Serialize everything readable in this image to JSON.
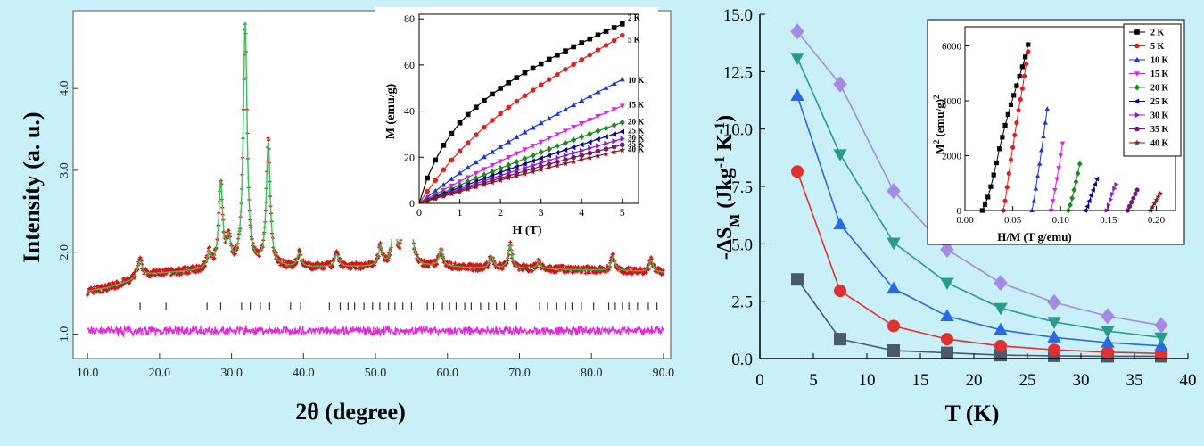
{
  "figure": {
    "background": "#c9f0f8"
  },
  "chart_data": [
    {
      "id": "xrd",
      "type": "scatter",
      "title": "",
      "xlabel": "2θ (degree)",
      "ylabel": "Intensity (a. u.)",
      "xlim": [
        8.0,
        91.0
      ],
      "ylim": [
        0.7,
        4.95
      ],
      "x_ticks": [
        "10.0",
        "20.0",
        "30.0",
        "40.0",
        "50.0",
        "60.0",
        "70.0",
        "80.0",
        "90.0"
      ],
      "y_ticks": [
        "1.0",
        "2.0",
        "3.0",
        "4.0"
      ],
      "grid": false,
      "background_profile": [
        [
          10,
          1.52
        ],
        [
          13,
          1.57
        ],
        [
          16,
          1.65
        ],
        [
          17,
          1.72
        ],
        [
          20,
          1.74
        ],
        [
          25,
          1.77
        ],
        [
          30,
          1.8
        ],
        [
          35,
          1.81
        ],
        [
          40,
          1.81
        ],
        [
          45,
          1.82
        ],
        [
          50,
          1.82
        ],
        [
          55,
          1.83
        ],
        [
          60,
          1.82
        ],
        [
          65,
          1.8
        ],
        [
          70,
          1.8
        ],
        [
          75,
          1.79
        ],
        [
          80,
          1.78
        ],
        [
          85,
          1.77
        ],
        [
          90,
          1.75
        ]
      ],
      "peaks": [
        {
          "x": 17.3,
          "y": 1.9
        },
        {
          "x": 26.9,
          "y": 1.98
        },
        {
          "x": 28.5,
          "y": 2.82
        },
        {
          "x": 29.6,
          "y": 2.1
        },
        {
          "x": 31.9,
          "y": 4.78
        },
        {
          "x": 35.1,
          "y": 3.33
        },
        {
          "x": 39.4,
          "y": 1.98
        },
        {
          "x": 44.6,
          "y": 1.97
        },
        {
          "x": 50.7,
          "y": 2.06
        },
        {
          "x": 52.6,
          "y": 2.42
        },
        {
          "x": 53.9,
          "y": 2.3
        },
        {
          "x": 54.8,
          "y": 2.68
        },
        {
          "x": 59.1,
          "y": 2.03
        },
        {
          "x": 66.1,
          "y": 1.95
        },
        {
          "x": 68.7,
          "y": 2.08
        },
        {
          "x": 72.7,
          "y": 1.88
        },
        {
          "x": 83.0,
          "y": 1.95
        },
        {
          "x": 88.3,
          "y": 1.9
        }
      ],
      "reflection_ticks_x": [
        17.3,
        20.9,
        26.6,
        28.5,
        31.4,
        32.6,
        34.0,
        35.3,
        38.2,
        39.6,
        43.6,
        45.1,
        46.2,
        47.1,
        48.4,
        49.6,
        50.6,
        51.8,
        52.7,
        53.8,
        55.0,
        57.2,
        58.1,
        59.3,
        60.3,
        61.2,
        62.4,
        63.3,
        64.6,
        65.7,
        66.8,
        67.9,
        69.6,
        72.8,
        73.9,
        75.1,
        76.4,
        77.3,
        78.6,
        80.3,
        82.4,
        83.3,
        84.3,
        85.2,
        86.4,
        87.9,
        89.1
      ],
      "reflection_ticks_y": 1.34,
      "difference_baseline": 1.04,
      "colors": {
        "observed": "#d41414",
        "calculated": "#36c25a",
        "difference": "#e02ad8",
        "ticks": "#333333"
      }
    },
    {
      "id": "mh-inset",
      "type": "line",
      "xlabel": "H (T)",
      "ylabel": "M (emu/g)",
      "xlim": [
        0,
        5.4
      ],
      "ylim": [
        0,
        82
      ],
      "x_ticks": [
        "0",
        "1",
        "2",
        "3",
        "4",
        "5"
      ],
      "y_ticks": [
        "0",
        "20",
        "40",
        "60",
        "80"
      ],
      "x": [
        0,
        0.2,
        0.4,
        0.6,
        0.8,
        1.0,
        1.2,
        1.4,
        1.6,
        1.8,
        2.0,
        2.2,
        2.4,
        2.6,
        2.8,
        3.0,
        3.2,
        3.4,
        3.6,
        3.8,
        4.0,
        4.2,
        4.4,
        4.6,
        4.8,
        5.0
      ],
      "series": [
        {
          "name": "2 K",
          "color": "#000000",
          "marker": "square",
          "values": [
            0,
            11.0,
            18.8,
            25.2,
            30.3,
            34.9,
            38.5,
            41.7,
            44.6,
            47.4,
            49.9,
            52.3,
            54.5,
            56.6,
            58.6,
            60.5,
            62.5,
            64.3,
            66.1,
            67.9,
            69.6,
            71.3,
            73.0,
            74.6,
            76.2,
            77.8
          ]
        },
        {
          "name": "5 K",
          "color": "#e02020",
          "marker": "circle",
          "values": [
            0,
            5.2,
            10.0,
            14.6,
            18.8,
            22.7,
            26.3,
            29.7,
            33.0,
            36.0,
            38.9,
            41.6,
            44.2,
            46.7,
            49.1,
            51.4,
            53.7,
            55.9,
            58.1,
            60.2,
            62.3,
            64.4,
            66.5,
            68.5,
            70.6,
            72.9
          ]
        },
        {
          "name": "10 K",
          "color": "#1a36d8",
          "marker": "triangle-up",
          "values": [
            0,
            2.7,
            5.4,
            8.0,
            10.6,
            13.1,
            15.5,
            17.8,
            20.1,
            22.3,
            24.5,
            26.6,
            28.7,
            30.8,
            32.8,
            34.8,
            36.8,
            38.8,
            40.7,
            42.6,
            44.5,
            46.4,
            48.3,
            50.1,
            51.9,
            53.7
          ]
        },
        {
          "name": "15 K",
          "color": "#e020e0",
          "marker": "triangle-down",
          "values": [
            0,
            2.0,
            3.9,
            5.8,
            7.7,
            9.5,
            11.3,
            13.1,
            14.9,
            16.6,
            18.3,
            20.0,
            21.7,
            23.4,
            25.0,
            26.7,
            28.3,
            29.9,
            31.5,
            33.1,
            34.7,
            36.2,
            37.8,
            39.3,
            40.8,
            42.3
          ]
        },
        {
          "name": "20 K",
          "color": "#1a8a1a",
          "marker": "diamond",
          "values": [
            0,
            1.6,
            3.2,
            4.8,
            6.3,
            7.9,
            9.4,
            10.9,
            12.3,
            13.8,
            15.2,
            16.6,
            18.0,
            19.4,
            20.8,
            22.2,
            23.5,
            24.9,
            26.2,
            27.5,
            28.8,
            30.1,
            31.4,
            32.6,
            33.9,
            35.1
          ]
        },
        {
          "name": "25 K",
          "color": "#00008a",
          "marker": "triangle-left",
          "values": [
            0,
            1.4,
            2.8,
            4.2,
            5.6,
            6.9,
            8.2,
            9.5,
            10.8,
            12.1,
            13.4,
            14.7,
            15.9,
            17.1,
            18.4,
            19.6,
            20.8,
            22.0,
            23.2,
            24.3,
            25.5,
            26.6,
            27.8,
            28.9,
            30.0,
            31.1
          ]
        },
        {
          "name": "30 K",
          "color": "#8a1ad8",
          "marker": "triangle-right",
          "values": [
            0,
            1.3,
            2.5,
            3.8,
            5.0,
            6.2,
            7.4,
            8.6,
            9.8,
            10.9,
            12.1,
            13.2,
            14.3,
            15.4,
            16.5,
            17.6,
            18.7,
            19.8,
            20.8,
            21.9,
            22.9,
            24.0,
            25.0,
            26.0,
            27.0,
            28.0
          ]
        },
        {
          "name": "35 K",
          "color": "#701a70",
          "marker": "circle",
          "values": [
            0,
            1.2,
            2.3,
            3.4,
            4.5,
            5.6,
            6.7,
            7.8,
            8.9,
            9.9,
            11.0,
            12.0,
            13.0,
            14.0,
            15.0,
            16.0,
            17.0,
            18.0,
            18.9,
            19.9,
            20.8,
            21.8,
            22.7,
            23.6,
            24.5,
            25.4
          ]
        },
        {
          "name": "40 K",
          "color": "#8a1a1a",
          "marker": "star",
          "values": [
            0,
            1.0,
            2.1,
            3.1,
            4.1,
            5.1,
            6.1,
            7.1,
            8.1,
            9.1,
            10.0,
            11.0,
            11.9,
            12.8,
            13.7,
            14.6,
            15.5,
            16.4,
            17.3,
            18.1,
            19.0,
            19.8,
            20.6,
            21.5,
            22.3,
            23.1
          ]
        }
      ],
      "curve_labels": [
        {
          "name": "2 K",
          "text": "2 K"
        },
        {
          "name": "5 K",
          "text": "5 K"
        },
        {
          "name": "10 K",
          "text": "10 K"
        },
        {
          "name": "15 K",
          "text": "15 K"
        },
        {
          "name": "20 K",
          "text": "20 K"
        },
        {
          "name": "25 K",
          "text": "25 K"
        },
        {
          "name": "30 K",
          "text": "30 K"
        },
        {
          "name": "35 K",
          "text": "35 K"
        },
        {
          "name": "40 K",
          "text": "40 K"
        }
      ]
    },
    {
      "id": "entropy",
      "type": "line",
      "xlabel": "T (K)",
      "ylabel": "-ΔS_M (Jkg^-1 K^-1)",
      "xlim": [
        0,
        40
      ],
      "ylim": [
        0,
        15
      ],
      "x_ticks": [
        "0",
        "5",
        "10",
        "15",
        "20",
        "25",
        "30",
        "35",
        "40"
      ],
      "y_ticks": [
        "0.0",
        "2.5",
        "5.0",
        "7.5",
        "10.0",
        "12.5",
        "15.0"
      ],
      "x": [
        3.5,
        7.5,
        12.5,
        17.5,
        22.5,
        27.5,
        32.5,
        37.5
      ],
      "series": [
        {
          "color": "#4a5a6a",
          "marker": "square",
          "values": [
            3.45,
            0.85,
            0.35,
            0.25,
            0.15,
            0.12,
            0.1,
            0.1
          ]
        },
        {
          "color": "#e03030",
          "marker": "circle",
          "values": [
            8.15,
            2.95,
            1.42,
            0.85,
            0.55,
            0.38,
            0.28,
            0.22
          ]
        },
        {
          "color": "#2a6ae0",
          "marker": "triangle-up",
          "values": [
            11.45,
            5.85,
            3.05,
            1.85,
            1.25,
            0.92,
            0.7,
            0.55
          ]
        },
        {
          "color": "#2a9a8a",
          "marker": "triangle-down",
          "values": [
            13.1,
            8.9,
            5.05,
            3.3,
            2.2,
            1.6,
            1.2,
            0.92
          ]
        },
        {
          "color": "#a48ae0",
          "marker": "diamond",
          "values": [
            14.25,
            11.95,
            7.3,
            4.75,
            3.3,
            2.45,
            1.85,
            1.45
          ]
        }
      ]
    },
    {
      "id": "arrott-inset",
      "type": "scatter",
      "xlabel": "H/M (T g/emu)",
      "ylabel": "M^2 (emu/g)^2",
      "xlim": [
        0,
        0.22
      ],
      "ylim": [
        0,
        6700
      ],
      "x_ticks": [
        "0.00",
        "0.05",
        "0.10",
        "0.15",
        "0.20"
      ],
      "y_ticks": [
        "0",
        "2000",
        "4000",
        "6000"
      ],
      "series": [
        {
          "name": "2 K",
          "color": "#000000",
          "marker": "square",
          "x": [
            0.018,
            0.021,
            0.024,
            0.027,
            0.03,
            0.033,
            0.036,
            0.039,
            0.042,
            0.045,
            0.048,
            0.051,
            0.054,
            0.057,
            0.06,
            0.063,
            0.066
          ],
          "y": [
            0,
            210,
            490,
            870,
            1300,
            1740,
            2250,
            2670,
            3110,
            3500,
            3860,
            4200,
            4550,
            4890,
            5240,
            5600,
            6050
          ]
        },
        {
          "name": "5 K",
          "color": "#e02020",
          "marker": "circle",
          "values_note": "",
          "x": [
            0.04,
            0.042,
            0.044,
            0.046,
            0.048,
            0.05,
            0.052,
            0.054,
            0.056,
            0.058,
            0.06,
            0.062,
            0.064,
            0.066
          ],
          "y": [
            0,
            350,
            850,
            1350,
            1850,
            2300,
            2750,
            3200,
            3650,
            4050,
            4450,
            4900,
            5350,
            5800
          ]
        },
        {
          "name": "10 K",
          "color": "#1a36d8",
          "marker": "triangle-up",
          "x": [
            0.07,
            0.072,
            0.074,
            0.076,
            0.078,
            0.08,
            0.082,
            0.084,
            0.086
          ],
          "y": [
            0,
            350,
            800,
            1250,
            1700,
            2200,
            2700,
            3200,
            3700
          ]
        },
        {
          "name": "15 K",
          "color": "#e020e0",
          "marker": "triangle-down",
          "x": [
            0.09,
            0.092,
            0.094,
            0.096,
            0.098,
            0.1,
            0.102
          ],
          "y": [
            0,
            350,
            750,
            1150,
            1550,
            2000,
            2450
          ]
        },
        {
          "name": "20 K",
          "color": "#1a8a1a",
          "marker": "diamond",
          "x": [
            0.108,
            0.11,
            0.112,
            0.114,
            0.116,
            0.118,
            0.12
          ],
          "y": [
            0,
            200,
            450,
            750,
            1050,
            1350,
            1700
          ]
        },
        {
          "name": "25 K",
          "color": "#00008a",
          "marker": "triangle-left",
          "x": [
            0.126,
            0.128,
            0.13,
            0.132,
            0.134,
            0.136,
            0.138
          ],
          "y": [
            0,
            150,
            350,
            550,
            750,
            950,
            1150
          ]
        },
        {
          "name": "30 K",
          "color": "#8a1ad8",
          "marker": "triangle-right",
          "x": [
            0.148,
            0.15,
            0.152,
            0.154,
            0.156,
            0.158
          ],
          "y": [
            0,
            200,
            400,
            600,
            800,
            950
          ]
        },
        {
          "name": "35 K",
          "color": "#701a70",
          "marker": "circle",
          "x": [
            0.17,
            0.172,
            0.174,
            0.176,
            0.178,
            0.18
          ],
          "y": [
            0,
            150,
            300,
            450,
            600,
            750
          ]
        },
        {
          "name": "40 K",
          "color": "#8a1a1a",
          "marker": "star",
          "x": [
            0.194,
            0.196,
            0.198,
            0.2,
            0.202,
            0.204
          ],
          "y": [
            0,
            120,
            250,
            380,
            500,
            620
          ]
        }
      ],
      "legend_position": "top-right"
    }
  ]
}
